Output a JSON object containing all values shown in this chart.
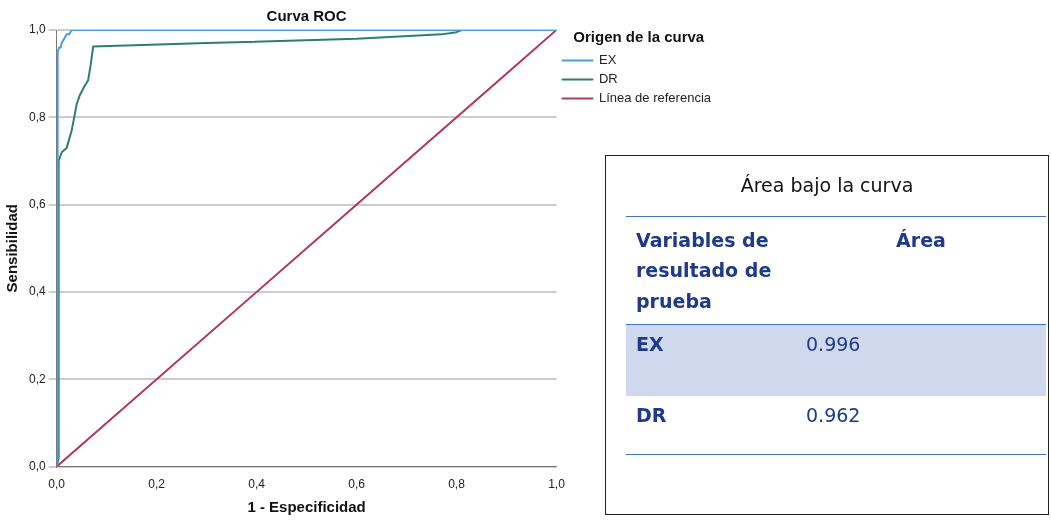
{
  "chart_data": {
    "type": "line",
    "title": "Curva ROC",
    "xlabel": "1 - Especificidad",
    "ylabel": "Sensibilidad",
    "legend_title": "Origen de la curva",
    "xlim": [
      0,
      1
    ],
    "ylim": [
      0,
      1
    ],
    "xticks": [
      {
        "value": 0,
        "label": "0,0"
      },
      {
        "value": 0.2,
        "label": "0,2"
      },
      {
        "value": 0.4,
        "label": "0,4"
      },
      {
        "value": 0.6,
        "label": "0,6"
      },
      {
        "value": 0.8,
        "label": "0,8"
      },
      {
        "value": 1,
        "label": "1,0"
      }
    ],
    "yticks": [
      {
        "value": 0,
        "label": "0,0"
      },
      {
        "value": 0.2,
        "label": "0,2"
      },
      {
        "value": 0.4,
        "label": "0,4"
      },
      {
        "value": 0.6,
        "label": "0,6"
      },
      {
        "value": 0.8,
        "label": "0,8"
      },
      {
        "value": 1,
        "label": "1,0"
      }
    ],
    "grid": "y",
    "legend": "top right",
    "marker": "none",
    "line_style": "solid",
    "series": [
      {
        "name": "EX",
        "color": "#4a9ee0",
        "x": [
          0,
          0,
          0.002,
          0.002,
          0.005,
          0.008,
          0.01,
          0.015,
          0.02,
          0.025,
          0.03,
          0.06,
          1
        ],
        "values": [
          0,
          0.01,
          0.02,
          0.95,
          0.96,
          0.96,
          0.97,
          0.98,
          0.99,
          0.99,
          1,
          1,
          1
        ]
      },
      {
        "name": "DR",
        "color": "#2e7d6e",
        "x": [
          0,
          0.004,
          0.004,
          0.01,
          0.02,
          0.025,
          0.03,
          0.035,
          0.04,
          0.046,
          0.055,
          0.063,
          0.068,
          0.073,
          0.3,
          0.6,
          0.77,
          0.8,
          0.81,
          1
        ],
        "values": [
          0,
          0.02,
          0.7,
          0.72,
          0.73,
          0.75,
          0.77,
          0.8,
          0.83,
          0.85,
          0.87,
          0.885,
          0.92,
          0.962,
          0.97,
          0.98,
          0.99,
          0.995,
          1,
          1
        ]
      },
      {
        "name": "Línea de referencia",
        "color": "#b03a60",
        "x": [
          0,
          1
        ],
        "values": [
          0,
          1
        ]
      }
    ],
    "annotations": [
      "Área bajo la curva",
      "Variables de resultado de prueba",
      "Área",
      "EX",
      "0.996",
      "DR",
      "0.962"
    ]
  }
}
